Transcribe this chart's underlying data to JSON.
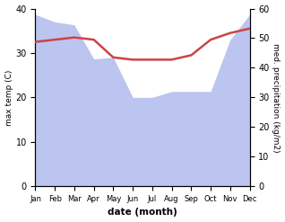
{
  "months": [
    "Jan",
    "Feb",
    "Mar",
    "Apr",
    "May",
    "Jun",
    "Jul",
    "Aug",
    "Sep",
    "Oct",
    "Nov",
    "Dec"
  ],
  "temp_max": [
    32.5,
    33.0,
    33.5,
    33.0,
    29.0,
    28.5,
    28.5,
    28.5,
    29.5,
    33.0,
    34.5,
    35.5
  ],
  "precip": [
    58.0,
    55.5,
    54.5,
    43.0,
    43.5,
    30.0,
    30.0,
    32.0,
    32.0,
    32.0,
    49.5,
    58.0
  ],
  "temp_ylim": [
    0,
    40
  ],
  "precip_ylim": [
    0,
    60
  ],
  "temp_color": "#cc4444",
  "precip_fill_color": "#bcc5ef",
  "xlabel": "date (month)",
  "ylabel_left": "max temp (C)",
  "ylabel_right": "med. precipitation (kg/m2)",
  "temp_linewidth": 1.8,
  "bg_color": "#ffffff"
}
